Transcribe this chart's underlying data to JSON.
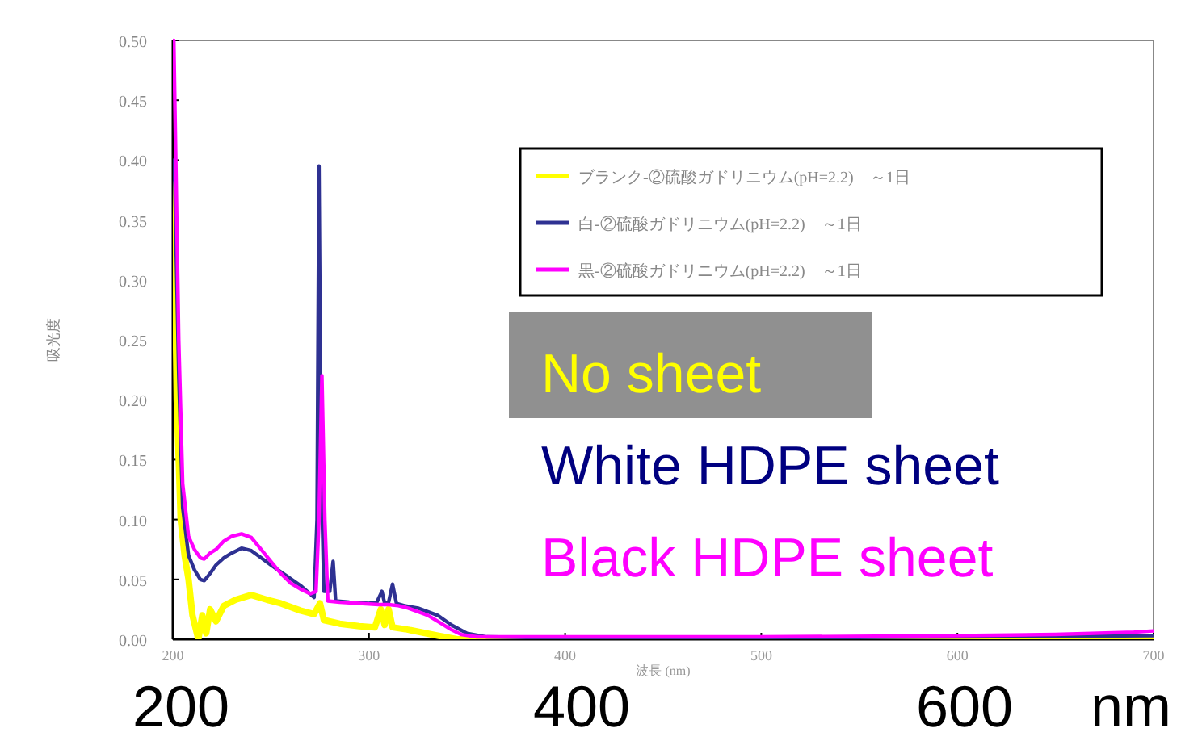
{
  "chart_data": {
    "type": "line",
    "ylabel": "吸光度",
    "xlabel": "波長 (nm)",
    "xlim": [
      200,
      700
    ],
    "xticks": [
      200,
      300,
      400,
      500,
      600,
      700
    ],
    "ylim": [
      0,
      0.5
    ],
    "yticks": [
      {
        "value": 0,
        "label": "0.00"
      },
      {
        "value": 0.05,
        "label": "0.05"
      },
      {
        "value": 0.1,
        "label": "0.10"
      },
      {
        "value": 0.15,
        "label": "0.15"
      },
      {
        "value": 0.2,
        "label": "0.20"
      },
      {
        "value": 0.25,
        "label": "0.25"
      },
      {
        "value": 0.3,
        "label": "0.30"
      },
      {
        "value": 0.35,
        "label": "0.35"
      },
      {
        "value": 0.4,
        "label": "0.40"
      },
      {
        "value": 0.45,
        "label": "0.45"
      },
      {
        "value": 0.5,
        "label": "0.50"
      }
    ],
    "legend": "top right",
    "marker": "none",
    "line_style": "solid",
    "series": [
      {
        "name": "ブランク-②硫酸ガドリニウム(pH=2.2)　～1日",
        "color": "#ffff00",
        "x": [
          200.5,
          202,
          204,
          206,
          208,
          210,
          213,
          215,
          217,
          219,
          222,
          226,
          232,
          240,
          248,
          255,
          265,
          272,
          275,
          277,
          285,
          295,
          303,
          306,
          308,
          310,
          312,
          320,
          335,
          345,
          400,
          500,
          600,
          700
        ],
        "values": [
          0.38,
          0.2,
          0.1,
          0.07,
          0.05,
          0.02,
          0.0,
          0.02,
          0.005,
          0.025,
          0.015,
          0.028,
          0.033,
          0.037,
          0.033,
          0.03,
          0.024,
          0.021,
          0.03,
          0.016,
          0.013,
          0.011,
          0.01,
          0.025,
          0.012,
          0.025,
          0.01,
          0.008,
          0.003,
          0.0,
          0.0,
          0.0,
          0.0,
          0.0
        ]
      },
      {
        "name": "白-②硫酸ガドリニウム(pH=2.2)　～1日",
        "color": "#2e3192",
        "x": [
          200.5,
          201,
          203,
          205,
          208,
          211,
          214,
          216,
          219,
          222,
          226,
          230,
          235,
          240,
          245,
          250,
          257,
          265,
          272,
          273.5,
          274.5,
          275.5,
          277,
          280,
          281.7,
          283,
          290,
          300,
          304,
          306.6,
          308,
          310,
          312,
          314,
          318,
          325,
          335,
          342,
          350,
          360,
          400,
          500,
          600,
          700
        ],
        "values": [
          0.4,
          0.38,
          0.22,
          0.11,
          0.07,
          0.058,
          0.05,
          0.049,
          0.055,
          0.062,
          0.068,
          0.072,
          0.076,
          0.074,
          0.068,
          0.062,
          0.054,
          0.045,
          0.035,
          0.1,
          0.395,
          0.15,
          0.04,
          0.04,
          0.065,
          0.032,
          0.031,
          0.03,
          0.031,
          0.04,
          0.03,
          0.031,
          0.046,
          0.03,
          0.028,
          0.026,
          0.02,
          0.012,
          0.005,
          0.002,
          0.001,
          0.001,
          0.002,
          0.003
        ]
      },
      {
        "name": "黒-②硫酸ガドリニウム(pH=2.2)　～1日",
        "color": "#ff00ff",
        "x": [
          200.5,
          201,
          203,
          205,
          208,
          211,
          214,
          216,
          219,
          222,
          226,
          230,
          235,
          240,
          245,
          250,
          255,
          260,
          265,
          270,
          273,
          274.5,
          276,
          277.5,
          279,
          285,
          295,
          305,
          310,
          315,
          320,
          330,
          336,
          342,
          347,
          355,
          380,
          420,
          500,
          600,
          650,
          690,
          700
        ],
        "values": [
          0.5,
          0.45,
          0.25,
          0.13,
          0.086,
          0.075,
          0.068,
          0.067,
          0.072,
          0.075,
          0.082,
          0.086,
          0.088,
          0.085,
          0.075,
          0.065,
          0.055,
          0.047,
          0.042,
          0.038,
          0.04,
          0.1,
          0.22,
          0.1,
          0.032,
          0.031,
          0.03,
          0.029,
          0.029,
          0.028,
          0.026,
          0.02,
          0.014,
          0.008,
          0.004,
          0.002,
          0.002,
          0.002,
          0.002,
          0.003,
          0.004,
          0.006,
          0.007
        ]
      }
    ],
    "annotations": [
      "200",
      "400",
      "600",
      "nm",
      "No sheet",
      "White HDPE sheet",
      "Black HDPE sheet"
    ]
  }
}
